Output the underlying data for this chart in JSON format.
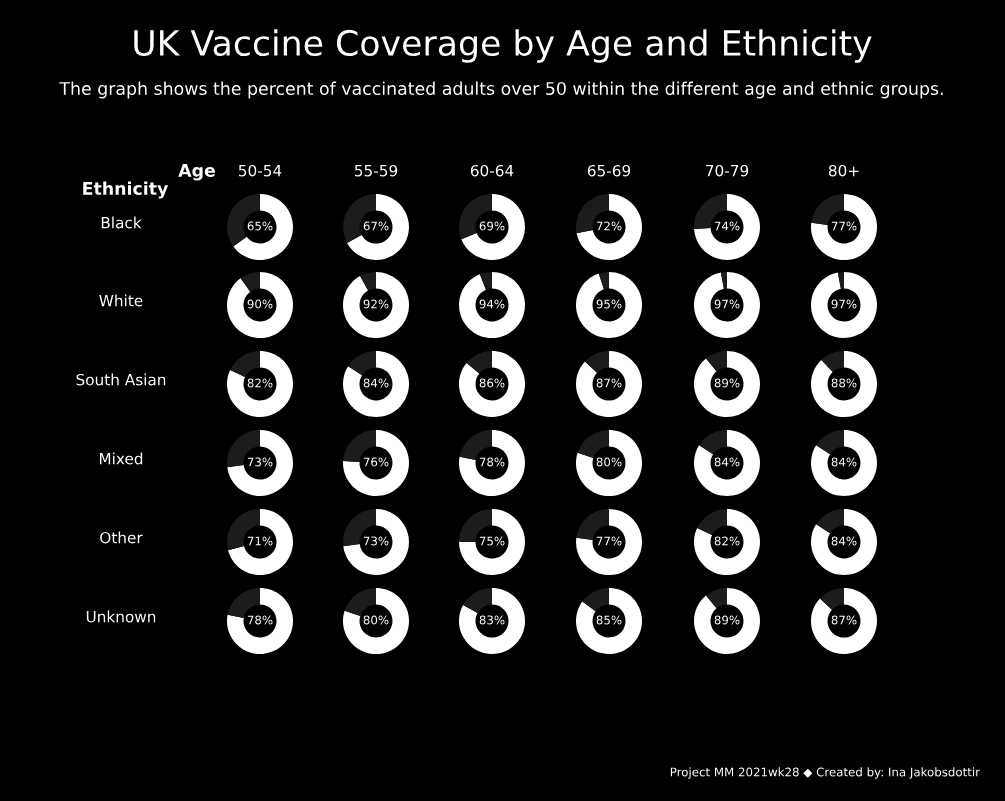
{
  "chart_data": [
    {
      "type": "other",
      "title": "UK Vaccine Coverage by Age and Ethnicity",
      "subtitle": "The graph shows the percent of vaccinated adults over 50 within the different age and ethnic groups.",
      "xlabel": "Age",
      "ylabel": "Ethnicity",
      "categories": [
        "50-54",
        "55-59",
        "60-64",
        "65-69",
        "70-79",
        "80+"
      ],
      "y_categories": [
        "Black",
        "White",
        "South Asian",
        "Mixed",
        "Other",
        "Unknown"
      ],
      "annotations": [
        "Project MM 2021wk28 ◆ Created by: Ina Jakobsdottir"
      ]
    },
    {
      "type": "donut",
      "categories": [
        null,
        null
      ],
      "values": [
        65,
        35
      ],
      "colors": [
        "#ffffff",
        "#1c1c1c"
      ],
      "value_labels": [
        "65%",
        null
      ]
    },
    {
      "type": "donut",
      "categories": [
        null,
        null
      ],
      "values": [
        67,
        33
      ],
      "colors": [
        "#ffffff",
        "#1c1c1c"
      ],
      "value_labels": [
        "67%",
        null
      ]
    },
    {
      "type": "donut",
      "categories": [
        null,
        null
      ],
      "values": [
        69,
        31
      ],
      "colors": [
        "#ffffff",
        "#1c1c1c"
      ],
      "value_labels": [
        "69%",
        null
      ]
    },
    {
      "type": "donut",
      "categories": [
        null,
        null
      ],
      "values": [
        72,
        28
      ],
      "colors": [
        "#ffffff",
        "#1c1c1c"
      ],
      "value_labels": [
        "72%",
        null
      ]
    },
    {
      "type": "donut",
      "categories": [
        null,
        null
      ],
      "values": [
        74,
        26
      ],
      "colors": [
        "#ffffff",
        "#1c1c1c"
      ],
      "value_labels": [
        "74%",
        null
      ]
    },
    {
      "type": "donut",
      "categories": [
        null,
        null
      ],
      "values": [
        77,
        23
      ],
      "colors": [
        "#ffffff",
        "#1c1c1c"
      ],
      "value_labels": [
        "77%",
        null
      ]
    },
    {
      "type": "donut",
      "categories": [
        null,
        null
      ],
      "values": [
        90,
        10
      ],
      "colors": [
        "#ffffff",
        "#1c1c1c"
      ],
      "value_labels": [
        "90%",
        null
      ]
    },
    {
      "type": "donut",
      "categories": [
        null,
        null
      ],
      "values": [
        92,
        8
      ],
      "colors": [
        "#ffffff",
        "#1c1c1c"
      ],
      "value_labels": [
        "92%",
        null
      ]
    },
    {
      "type": "donut",
      "categories": [
        null,
        null
      ],
      "values": [
        94,
        6
      ],
      "colors": [
        "#ffffff",
        "#1c1c1c"
      ],
      "value_labels": [
        "94%",
        null
      ]
    },
    {
      "type": "donut",
      "categories": [
        null,
        null
      ],
      "values": [
        95,
        5
      ],
      "colors": [
        "#ffffff",
        "#1c1c1c"
      ],
      "value_labels": [
        "95%",
        null
      ]
    },
    {
      "type": "donut",
      "categories": [
        null,
        null
      ],
      "values": [
        97,
        3
      ],
      "colors": [
        "#ffffff",
        "#1c1c1c"
      ],
      "value_labels": [
        "97%",
        null
      ]
    },
    {
      "type": "donut",
      "categories": [
        null,
        null
      ],
      "values": [
        97,
        3
      ],
      "colors": [
        "#ffffff",
        "#1c1c1c"
      ],
      "value_labels": [
        "97%",
        null
      ]
    },
    {
      "type": "donut",
      "categories": [
        null,
        null
      ],
      "values": [
        82,
        18
      ],
      "colors": [
        "#ffffff",
        "#1c1c1c"
      ],
      "value_labels": [
        "82%",
        null
      ]
    },
    {
      "type": "donut",
      "categories": [
        null,
        null
      ],
      "values": [
        84,
        16
      ],
      "colors": [
        "#ffffff",
        "#1c1c1c"
      ],
      "value_labels": [
        "84%",
        null
      ]
    },
    {
      "type": "donut",
      "categories": [
        null,
        null
      ],
      "values": [
        86,
        14
      ],
      "colors": [
        "#ffffff",
        "#1c1c1c"
      ],
      "value_labels": [
        "86%",
        null
      ]
    },
    {
      "type": "donut",
      "categories": [
        null,
        null
      ],
      "values": [
        87,
        13
      ],
      "colors": [
        "#ffffff",
        "#1c1c1c"
      ],
      "value_labels": [
        "87%",
        null
      ]
    },
    {
      "type": "donut",
      "categories": [
        null,
        null
      ],
      "values": [
        89,
        11
      ],
      "colors": [
        "#ffffff",
        "#1c1c1c"
      ],
      "value_labels": [
        "89%",
        null
      ]
    },
    {
      "type": "donut",
      "categories": [
        null,
        null
      ],
      "values": [
        88,
        12
      ],
      "colors": [
        "#ffffff",
        "#1c1c1c"
      ],
      "value_labels": [
        "88%",
        null
      ]
    },
    {
      "type": "donut",
      "categories": [
        null,
        null
      ],
      "values": [
        73,
        27
      ],
      "colors": [
        "#ffffff",
        "#1c1c1c"
      ],
      "value_labels": [
        "73%",
        null
      ]
    },
    {
      "type": "donut",
      "categories": [
        null,
        null
      ],
      "values": [
        76,
        24
      ],
      "colors": [
        "#ffffff",
        "#1c1c1c"
      ],
      "value_labels": [
        "76%",
        null
      ]
    },
    {
      "type": "donut",
      "categories": [
        null,
        null
      ],
      "values": [
        78,
        22
      ],
      "colors": [
        "#ffffff",
        "#1c1c1c"
      ],
      "value_labels": [
        "78%",
        null
      ]
    },
    {
      "type": "donut",
      "categories": [
        null,
        null
      ],
      "values": [
        80,
        20
      ],
      "colors": [
        "#ffffff",
        "#1c1c1c"
      ],
      "value_labels": [
        "80%",
        null
      ]
    },
    {
      "type": "donut",
      "categories": [
        null,
        null
      ],
      "values": [
        84,
        16
      ],
      "colors": [
        "#ffffff",
        "#1c1c1c"
      ],
      "value_labels": [
        "84%",
        null
      ]
    },
    {
      "type": "donut",
      "categories": [
        null,
        null
      ],
      "values": [
        84,
        16
      ],
      "colors": [
        "#ffffff",
        "#1c1c1c"
      ],
      "value_labels": [
        "84%",
        null
      ]
    },
    {
      "type": "donut",
      "categories": [
        null,
        null
      ],
      "values": [
        71,
        29
      ],
      "colors": [
        "#ffffff",
        "#1c1c1c"
      ],
      "value_labels": [
        "71%",
        null
      ]
    },
    {
      "type": "donut",
      "categories": [
        null,
        null
      ],
      "values": [
        73,
        27
      ],
      "colors": [
        "#ffffff",
        "#1c1c1c"
      ],
      "value_labels": [
        "73%",
        null
      ]
    },
    {
      "type": "donut",
      "categories": [
        null,
        null
      ],
      "values": [
        75,
        25
      ],
      "colors": [
        "#ffffff",
        "#1c1c1c"
      ],
      "value_labels": [
        "75%",
        null
      ]
    },
    {
      "type": "donut",
      "categories": [
        null,
        null
      ],
      "values": [
        77,
        23
      ],
      "colors": [
        "#ffffff",
        "#1c1c1c"
      ],
      "value_labels": [
        "77%",
        null
      ]
    },
    {
      "type": "donut",
      "categories": [
        null,
        null
      ],
      "values": [
        82,
        18
      ],
      "colors": [
        "#ffffff",
        "#1c1c1c"
      ],
      "value_labels": [
        "82%",
        null
      ]
    },
    {
      "type": "donut",
      "categories": [
        null,
        null
      ],
      "values": [
        84,
        16
      ],
      "colors": [
        "#ffffff",
        "#1c1c1c"
      ],
      "value_labels": [
        "84%",
        null
      ]
    },
    {
      "type": "donut",
      "categories": [
        null,
        null
      ],
      "values": [
        78,
        22
      ],
      "colors": [
        "#ffffff",
        "#1c1c1c"
      ],
      "value_labels": [
        "78%",
        null
      ]
    },
    {
      "type": "donut",
      "categories": [
        null,
        null
      ],
      "values": [
        80,
        20
      ],
      "colors": [
        "#ffffff",
        "#1c1c1c"
      ],
      "value_labels": [
        "80%",
        null
      ]
    },
    {
      "type": "donut",
      "categories": [
        null,
        null
      ],
      "values": [
        83,
        17
      ],
      "colors": [
        "#ffffff",
        "#1c1c1c"
      ],
      "value_labels": [
        "83%",
        null
      ]
    },
    {
      "type": "donut",
      "categories": [
        null,
        null
      ],
      "values": [
        85,
        15
      ],
      "colors": [
        "#ffffff",
        "#1c1c1c"
      ],
      "value_labels": [
        "85%",
        null
      ]
    },
    {
      "type": "donut",
      "categories": [
        null,
        null
      ],
      "values": [
        89,
        11
      ],
      "colors": [
        "#ffffff",
        "#1c1c1c"
      ],
      "value_labels": [
        "89%",
        null
      ]
    },
    {
      "type": "donut",
      "categories": [
        null,
        null
      ],
      "values": [
        87,
        13
      ],
      "colors": [
        "#ffffff",
        "#1c1c1c"
      ],
      "value_labels": [
        "87%",
        null
      ]
    }
  ]
}
